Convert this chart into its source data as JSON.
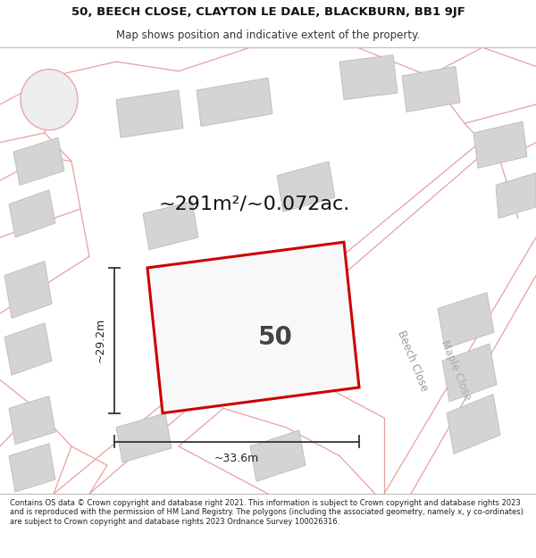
{
  "title_line1": "50, BEECH CLOSE, CLAYTON LE DALE, BLACKBURN, BB1 9JF",
  "title_line2": "Map shows position and indicative extent of the property.",
  "footer_text": "Contains OS data © Crown copyright and database right 2021. This information is subject to Crown copyright and database rights 2023 and is reproduced with the permission of HM Land Registry. The polygons (including the associated geometry, namely x, y co-ordinates) are subject to Crown copyright and database rights 2023 Ordnance Survey 100026316.",
  "area_label": "~291m²/~0.072ac.",
  "width_label": "~33.6m",
  "height_label": "~29.2m",
  "plot_number": "50",
  "road_label1": "Beech Close",
  "road_label2": "Maple Close",
  "map_bg": "#eeeeee",
  "plot_fill": "#f8f8f8",
  "plot_edge": "#cc0000",
  "building_fill": "#d4d4d4",
  "building_stroke": "#bbbbbb",
  "dim_line_color": "#333333",
  "road_line_color": "#e8a0a0",
  "title_fontsize": 9.5,
  "subtitle_fontsize": 8.5,
  "footer_fontsize": 6.0,
  "area_fontsize": 16,
  "plot_num_fontsize": 20,
  "dim_fontsize": 9
}
